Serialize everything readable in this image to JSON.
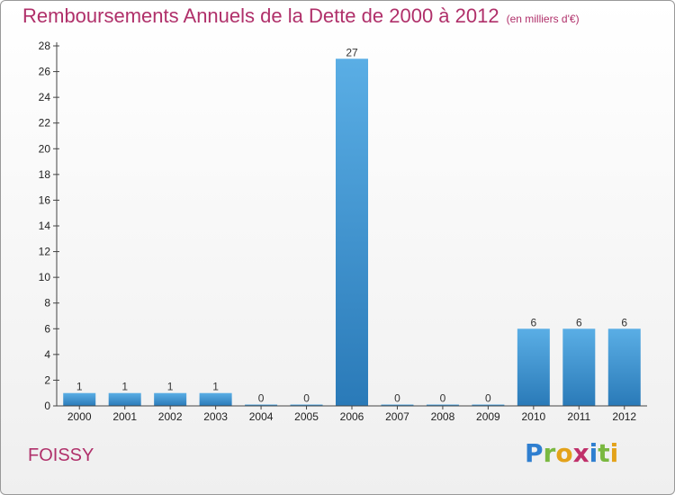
{
  "title": "Remboursements Annuels de la Dette de 2000 à 2012",
  "title_unit": "(en milliers d'€)",
  "commune": "FOISSY",
  "logo": {
    "letters": [
      "P",
      "r",
      "o",
      "x",
      "i",
      "t",
      "i"
    ],
    "colors": [
      "#2f7fd0",
      "#7ab840",
      "#e3a21a",
      "#c0306a",
      "#2f7fd0",
      "#7ab840",
      "#e3a21a"
    ]
  },
  "colors": {
    "title": "#b0306a",
    "bar_top": "#5aaee5",
    "bar_bottom": "#2a7ab8"
  },
  "chart_data": {
    "type": "bar",
    "title": "Remboursements Annuels de la Dette de 2000 à 2012",
    "ylabel": "en milliers d'€",
    "xlabel": "",
    "categories": [
      "2000",
      "2001",
      "2002",
      "2003",
      "2004",
      "2005",
      "2006",
      "2007",
      "2008",
      "2009",
      "2010",
      "2011",
      "2012"
    ],
    "values": [
      1,
      1,
      1,
      1,
      0,
      0,
      27,
      0,
      0,
      0,
      6,
      6,
      6
    ],
    "ylim": [
      0,
      28
    ],
    "yticks": [
      0,
      2,
      4,
      6,
      8,
      10,
      12,
      14,
      16,
      18,
      20,
      22,
      24,
      26,
      28
    ],
    "grid": false,
    "legend": "none"
  }
}
